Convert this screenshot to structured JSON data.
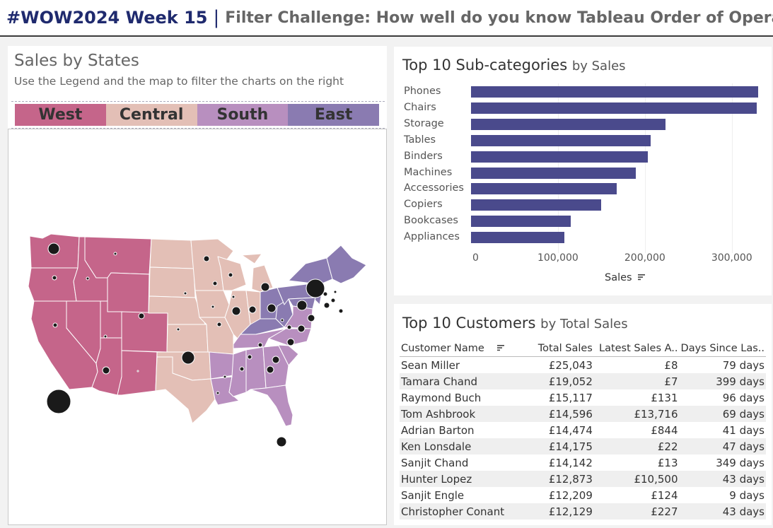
{
  "header": {
    "title_main": "#WOW2024 Week 15",
    "separator": "|",
    "title_rest": "Filter Challenge: How well do you know Tableau Order of Operation"
  },
  "map_panel": {
    "title": "Sales by States",
    "subtitle": "Use the Legend and  the map to filter the charts on the right",
    "legend": [
      {
        "label": "West",
        "color": "#c5658a"
      },
      {
        "label": "Central",
        "color": "#e3bfb6"
      },
      {
        "label": "South",
        "color": "#b88fbf"
      },
      {
        "label": "East",
        "color": "#8a7bb1"
      }
    ]
  },
  "subcat_panel": {
    "title_bold": "Top 10  Sub-categories",
    "title_rest": "by Sales",
    "x_axis_label": "Sales",
    "sort_icon": "sort-descending-icon",
    "bar_color": "#4a4a8c"
  },
  "chart_data": {
    "type": "bar",
    "orientation": "horizontal",
    "categories": [
      "Phones",
      "Chairs",
      "Storage",
      "Tables",
      "Binders",
      "Machines",
      "Accessories",
      "Copiers",
      "Bookcases",
      "Appliances"
    ],
    "values": [
      330007,
      328449,
      223844,
      206966,
      203413,
      189239,
      167380,
      149528,
      114880,
      107532
    ],
    "xlabel": "Sales",
    "xticks": [
      "0",
      "100,000",
      "200,000",
      "300,000"
    ],
    "xlim": [
      0,
      340000
    ]
  },
  "customers_panel": {
    "title_bold": "Top 10 Customers",
    "title_rest": "by Total Sales",
    "columns": [
      "Customer Name",
      "Total Sales",
      "Latest Sales A..",
      "Days Since Las.."
    ],
    "rows": [
      [
        "Sean Miller",
        "£25,043",
        "£8",
        "79 days"
      ],
      [
        "Tamara Chand",
        "£19,052",
        "£7",
        "399 days"
      ],
      [
        "Raymond Buch",
        "£15,117",
        "£131",
        "96 days"
      ],
      [
        "Tom Ashbrook",
        "£14,596",
        "£13,716",
        "69 days"
      ],
      [
        "Adrian Barton",
        "£14,474",
        "£844",
        "41 days"
      ],
      [
        "Ken Lonsdale",
        "£14,175",
        "£22",
        "47 days"
      ],
      [
        "Sanjit Chand",
        "£14,142",
        "£13",
        "349 days"
      ],
      [
        "Hunter Lopez",
        "£12,873",
        "£10,500",
        "43 days"
      ],
      [
        "Sanjit Engle",
        "£12,209",
        "£124",
        "9 days"
      ],
      [
        "Christopher Conant",
        "£12,129",
        "£227",
        "43 days"
      ]
    ]
  }
}
